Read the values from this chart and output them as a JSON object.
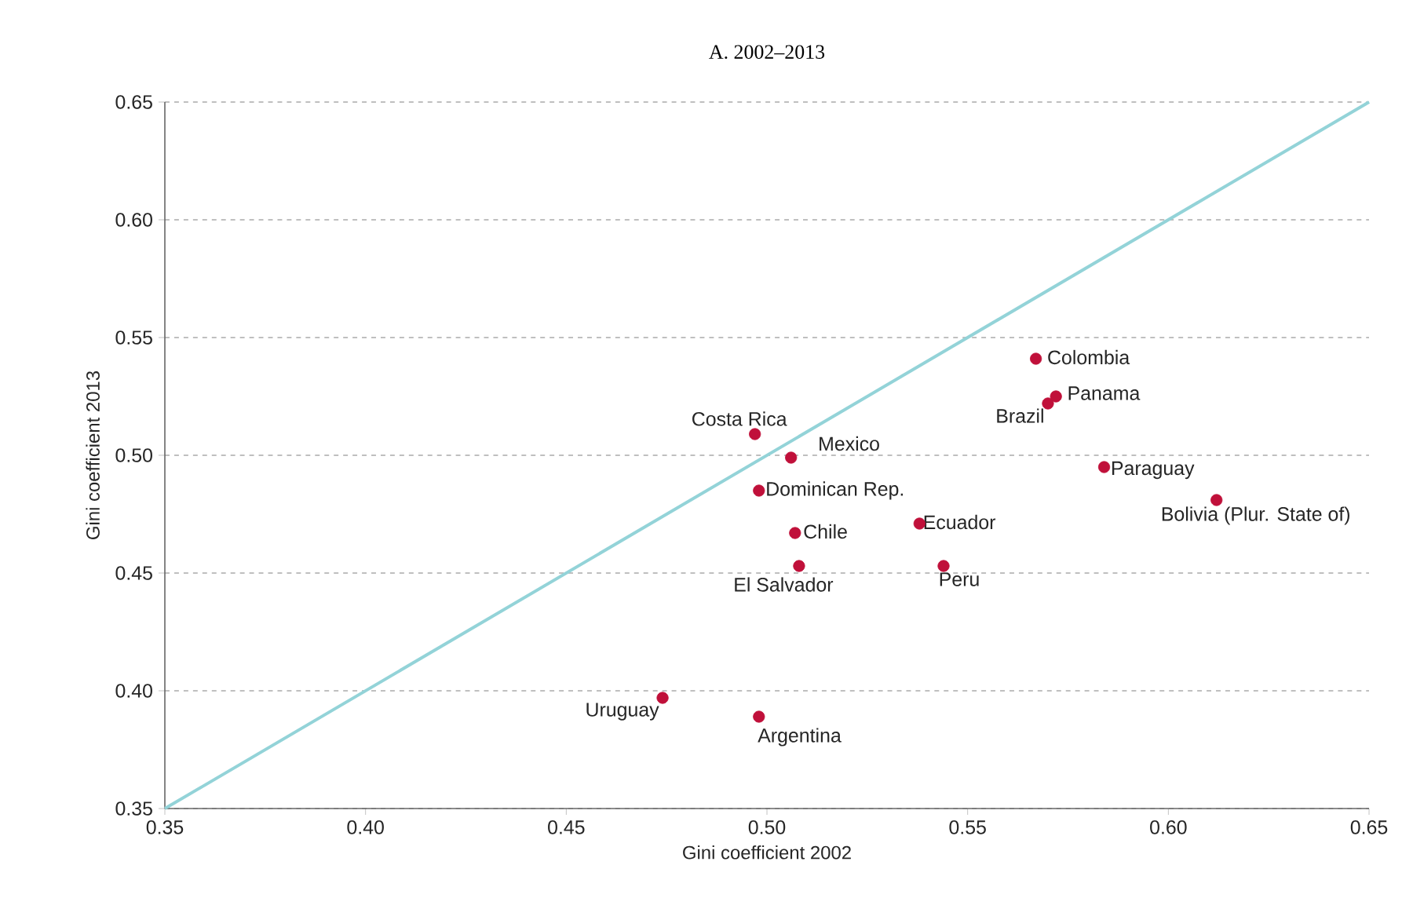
{
  "chart_data": {
    "type": "scatter",
    "title": "A. 2002–2013",
    "xlabel": "Gini coefficient 2002",
    "ylabel": "Gini coefficient 2013",
    "xlim": [
      0.35,
      0.65
    ],
    "ylim": [
      0.35,
      0.65
    ],
    "xticks": [
      {
        "value": 0.35,
        "label": "0.35"
      },
      {
        "value": 0.4,
        "label": "0.40"
      },
      {
        "value": 0.45,
        "label": "0.45"
      },
      {
        "value": 0.5,
        "label": "0.50"
      },
      {
        "value": 0.55,
        "label": "0.55"
      },
      {
        "value": 0.6,
        "label": "0.60"
      },
      {
        "value": 0.65,
        "label": "0.65"
      }
    ],
    "yticks": [
      {
        "value": 0.35,
        "label": "0.35"
      },
      {
        "value": 0.4,
        "label": "0.40"
      },
      {
        "value": 0.45,
        "label": "0.45"
      },
      {
        "value": 0.5,
        "label": "0.50"
      },
      {
        "value": 0.55,
        "label": "0.55"
      },
      {
        "value": 0.6,
        "label": "0.60"
      },
      {
        "value": 0.65,
        "label": "0.65"
      }
    ],
    "grid": "y",
    "series": [
      {
        "type": "line",
        "marker": "none",
        "color": "#93d3d8",
        "x": [
          0.35,
          0.65
        ],
        "values": [
          0.35,
          0.65
        ]
      },
      {
        "marker": "circle",
        "color": "#c0103a",
        "x": [
          0.497,
          0.506,
          0.498,
          0.507,
          0.508,
          0.538,
          0.544,
          0.567,
          0.57,
          0.572,
          0.584,
          0.612,
          0.474,
          0.498
        ],
        "values": [
          0.509,
          0.499,
          0.485,
          0.467,
          0.453,
          0.471,
          0.453,
          0.541,
          0.522,
          0.525,
          0.495,
          0.481,
          0.397,
          0.389
        ]
      }
    ],
    "annotations": [
      {
        "text": "Costa Rica",
        "x": 0.497,
        "y": 0.509
      },
      {
        "text": "Mexico",
        "x": 0.506,
        "y": 0.499
      },
      {
        "text": "Dominican Rep.",
        "x": 0.498,
        "y": 0.485
      },
      {
        "text": "Chile",
        "x": 0.507,
        "y": 0.467
      },
      {
        "text": "El Salvador",
        "x": 0.508,
        "y": 0.453
      },
      {
        "text": "Ecuador",
        "x": 0.538,
        "y": 0.471
      },
      {
        "text": "Peru",
        "x": 0.544,
        "y": 0.453
      },
      {
        "text": "Colombia",
        "x": 0.567,
        "y": 0.541
      },
      {
        "text": "Brazil",
        "x": 0.57,
        "y": 0.522
      },
      {
        "text": "Panama",
        "x": 0.572,
        "y": 0.525
      },
      {
        "text": "Paraguay",
        "x": 0.584,
        "y": 0.495
      },
      {
        "text": "Bolivia (Plur. State of)",
        "x": 0.612,
        "y": 0.481
      },
      {
        "text": "Uruguay",
        "x": 0.474,
        "y": 0.397
      },
      {
        "text": "Argentina",
        "x": 0.498,
        "y": 0.389
      }
    ]
  }
}
